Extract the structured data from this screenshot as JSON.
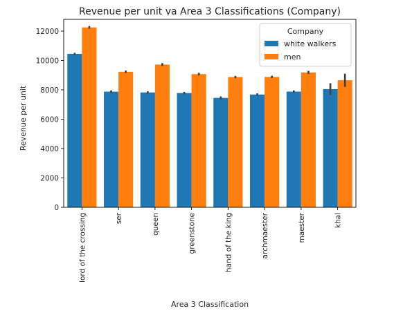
{
  "chart_data": {
    "type": "bar",
    "title": "Revenue per unit va Area 3 Classifications (Company)",
    "xlabel": "Area 3 Classification",
    "ylabel": "Revenue per unit",
    "ylim": [
      0,
      12800
    ],
    "yticks": [
      0,
      2000,
      4000,
      6000,
      8000,
      10000,
      12000
    ],
    "categories": [
      "lord of the crossing",
      "ser",
      "queen",
      "greenstone",
      "hand of the king",
      "archmaester",
      "maester",
      "khal"
    ],
    "legend": {
      "title": "Company",
      "placement": "top-right"
    },
    "series": [
      {
        "name": "white walkers",
        "color": "#1f77b4",
        "values": [
          10450,
          7880,
          7820,
          7780,
          7450,
          7680,
          7880,
          8050
        ],
        "err_low": [
          10380,
          7800,
          7740,
          7700,
          7350,
          7600,
          7800,
          7650
        ],
        "err_high": [
          10520,
          7960,
          7900,
          7860,
          7550,
          7760,
          7960,
          8450
        ]
      },
      {
        "name": "men",
        "color": "#ff7f0e",
        "values": [
          12250,
          9230,
          9720,
          9070,
          8870,
          8880,
          9180,
          8650
        ],
        "err_low": [
          12160,
          9150,
          9620,
          8980,
          8790,
          8800,
          9070,
          8200
        ],
        "err_high": [
          12340,
          9310,
          9820,
          9160,
          8950,
          8960,
          9290,
          9100
        ]
      }
    ],
    "grid": false,
    "error_bar_color": "#424242"
  }
}
